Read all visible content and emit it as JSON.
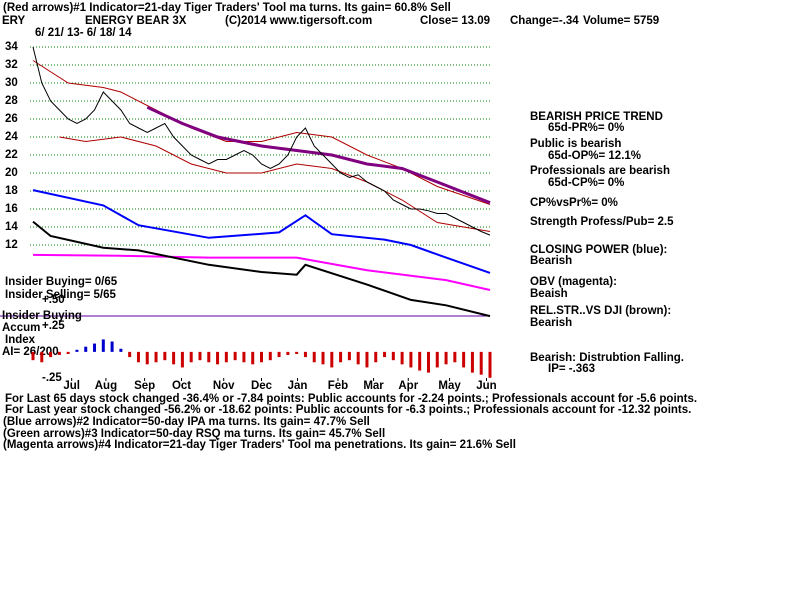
{
  "header": {
    "line1": "(Red arrows)#1 Indicator=21-day Tiger Traders' Tool ma turns. Its gain= 60.8% Sell",
    "symbol": "ERY",
    "name": "ENERGY BEAR 3X",
    "copyright": "(C)2014 www.tigersoft.com",
    "close": "Close=  13.09",
    "change": "Change=-.34",
    "volume": "Volume= 5759",
    "dates": "6/ 21/ 13- 6/ 18/ 14"
  },
  "left_panel": [
    "Insider Buying= 0/65",
    "Insider Selling= 5/65",
    "Insider Buying",
    "Accum",
    "Index",
    "AI= 26/200"
  ],
  "right_panel": [
    "BEARISH PRICE TREND",
    "65d-PR%= 0%",
    "Public is bearish",
    "65d-OP%= 12.1%",
    "Professionals are bearish",
    "65d-CP%= 0%",
    "CP%vsPr%=  0%",
    "Strength Profess/Pub= 2.5",
    "CLOSING POWER (blue):",
    "Bearish",
    "OBV (magenta):",
    "Beaish",
    "REL.STR..VS DJI (brown):",
    "Bearish",
    "Bearish: Distrubtion Falling.",
    "IP= -.363"
  ],
  "footer": [
    "For Last 65 days stock changed -36.4% or -7.84 points:  Public accounts for -2.24 points.;  Professionals account for -5.6 points.",
    "For Last year stock changed -56.2% or -18.62 points:  Public accounts for -6.3 points.;  Professionals account for -12.32 points.",
    "(Blue arrows)#2 Indicator=50-day IPA ma turns. Its gain= 47.7% Sell",
    "(Green arrows)#3 Indicator=50-day RSQ ma turns. Its gain= 45.7% Sell",
    "(Magenta arrows)#4 Indicator=21-day Tiger Traders' Tool ma penetrations. Its gain= 21.6% Sell"
  ],
  "chart_data": [
    {
      "type": "line",
      "xlim": [
        0,
        52
      ],
      "xticks": [
        {
          "value": 4.4,
          "label": "Jul"
        },
        {
          "value": 8.3,
          "label": "Aug"
        },
        {
          "value": 12.7,
          "label": "Sep"
        },
        {
          "value": 16.9,
          "label": "Oct"
        },
        {
          "value": 21.7,
          "label": "Nov"
        },
        {
          "value": 26,
          "label": "Dec"
        },
        {
          "value": 30.1,
          "label": "Jan"
        },
        {
          "value": 34.7,
          "label": "Feb"
        },
        {
          "value": 38.75,
          "label": "Mar"
        },
        {
          "value": 42.7,
          "label": "Apr"
        },
        {
          "value": 47.4,
          "label": "May"
        },
        {
          "value": 51.6,
          "label": "Jun"
        }
      ],
      "ylim": [
        3,
        35
      ],
      "yticks": [
        12,
        14,
        16,
        18,
        20,
        22,
        24,
        26,
        28,
        30,
        32,
        34
      ],
      "grid": true,
      "series": [
        {
          "color": "#b00000",
          "width": 1,
          "x": [
            0,
            4,
            8,
            10,
            14,
            18,
            22,
            26,
            30,
            34,
            38,
            42,
            46,
            52
          ],
          "values": [
            32.5,
            30,
            29.5,
            29,
            27,
            25,
            23.5,
            23.5,
            24.5,
            24,
            22,
            20.5,
            18.5,
            16.5
          ]
        },
        {
          "color": "#b00000",
          "width": 1,
          "x": [
            3,
            6,
            10,
            14,
            18,
            22,
            26,
            30,
            34,
            38,
            42,
            46,
            52
          ],
          "values": [
            24,
            23.5,
            24,
            23,
            21,
            20,
            20,
            21,
            20.5,
            19,
            17,
            14.5,
            13.5
          ]
        },
        {
          "color": "#800080",
          "width": 3,
          "x": [
            13,
            17,
            21,
            26,
            30,
            34,
            38,
            42,
            46,
            52
          ],
          "values": [
            27.3,
            25.5,
            24,
            23,
            22.5,
            22,
            21,
            20.5,
            19,
            16.7
          ]
        },
        {
          "color": "#0000ff",
          "width": 2,
          "x": [
            0,
            8,
            12,
            20,
            28,
            31,
            34,
            40,
            43,
            47,
            52
          ],
          "values": [
            18.1,
            16.4,
            14.2,
            12.8,
            13.4,
            15.3,
            13.2,
            12.6,
            12,
            10.6,
            8.9
          ]
        },
        {
          "color": "#ff00ff",
          "width": 2,
          "x": [
            0,
            10,
            20,
            30,
            38,
            47,
            52
          ],
          "values": [
            10.9,
            10.8,
            10.6,
            10.6,
            9.2,
            8.1,
            7
          ]
        },
        {
          "color": "#000000",
          "width": 2,
          "x": [
            0,
            2,
            8,
            12,
            20,
            26,
            30,
            31,
            38,
            43,
            47,
            52
          ],
          "values": [
            14.6,
            13,
            11.7,
            11.4,
            9.8,
            9,
            8.7,
            9.8,
            7.6,
            5.9,
            5.3,
            4.1
          ]
        },
        {
          "color": "#000000",
          "width": 1,
          "x": [
            0,
            1,
            2,
            3,
            4,
            5,
            6,
            7,
            8,
            9,
            10,
            11,
            12,
            13,
            14,
            15,
            16,
            17,
            18,
            19,
            20,
            21,
            22,
            23,
            24,
            25,
            26,
            27,
            28,
            29,
            30,
            31,
            32,
            33,
            34,
            35,
            36,
            37,
            38,
            39,
            40,
            41,
            42,
            43,
            44,
            45,
            46,
            47,
            48,
            49,
            50,
            51,
            52
          ],
          "values": [
            34,
            30,
            28,
            27,
            26,
            25.5,
            26,
            27,
            29,
            28,
            27,
            25.5,
            25,
            24.5,
            25,
            25.5,
            24,
            23,
            22,
            21.5,
            21,
            21.5,
            21.5,
            22,
            22.5,
            22,
            21,
            20.5,
            21,
            22,
            24,
            25,
            23,
            22,
            21,
            20,
            19.5,
            19.8,
            19,
            18.5,
            18,
            17,
            16.5,
            16,
            16,
            15.8,
            15.5,
            15.5,
            15,
            14.5,
            14,
            13.5,
            13.1
          ]
        }
      ]
    },
    {
      "type": "bar",
      "xlim": [
        0,
        52
      ],
      "ylim": [
        -0.3,
        0.5
      ],
      "yticks": [
        {
          "value": 0.5,
          "label": "+.50"
        },
        {
          "value": 0.25,
          "label": "+.25"
        },
        {
          "value": -0.25,
          "label": "-.25"
        }
      ],
      "color": "#cc0000",
      "pos_color": "#0000cc",
      "x": [
        0,
        1,
        2,
        3,
        4,
        5,
        6,
        7,
        8,
        9,
        10,
        11,
        12,
        13,
        14,
        15,
        16,
        17,
        18,
        19,
        20,
        21,
        22,
        23,
        24,
        25,
        26,
        27,
        28,
        29,
        30,
        31,
        32,
        33,
        34,
        35,
        36,
        37,
        38,
        39,
        40,
        41,
        42,
        43,
        44,
        45,
        46,
        47,
        48,
        49,
        50,
        51,
        52
      ],
      "values": [
        -0.08,
        -0.1,
        -0.05,
        -0.03,
        -0.02,
        0.02,
        0.05,
        0.08,
        0.12,
        0.1,
        0.03,
        -0.05,
        -0.1,
        -0.12,
        -0.1,
        -0.08,
        -0.12,
        -0.15,
        -0.1,
        -0.08,
        -0.1,
        -0.12,
        -0.1,
        -0.08,
        -0.1,
        -0.12,
        -0.1,
        -0.08,
        -0.05,
        -0.03,
        -0.02,
        -0.05,
        -0.1,
        -0.12,
        -0.15,
        -0.1,
        -0.08,
        -0.12,
        -0.15,
        -0.1,
        -0.05,
        -0.08,
        -0.12,
        -0.15,
        -0.18,
        -0.2,
        -0.15,
        -0.12,
        -0.1,
        -0.15,
        -0.2,
        -0.22,
        -0.25
      ]
    }
  ]
}
